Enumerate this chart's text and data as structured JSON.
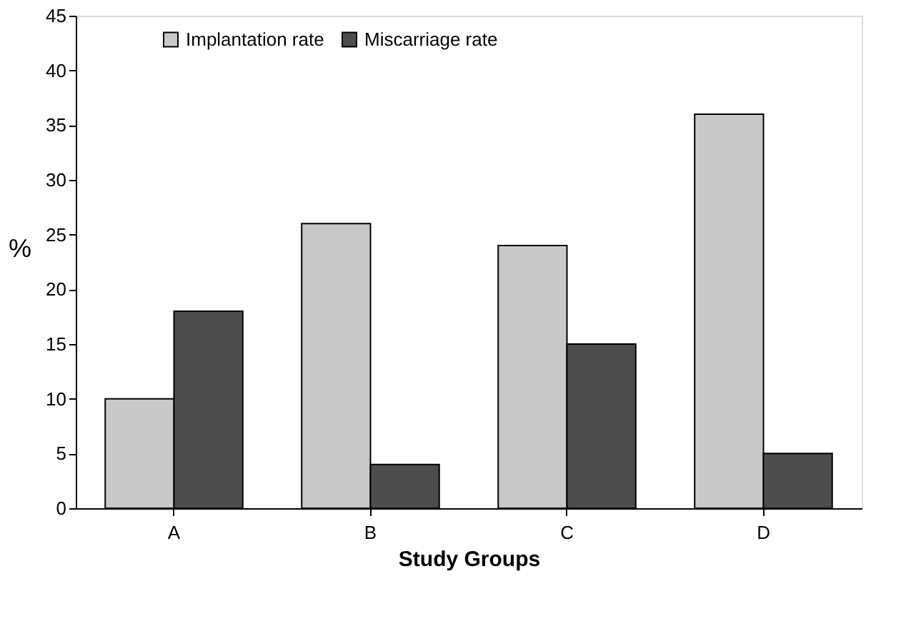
{
  "chart_data": {
    "type": "bar",
    "categories": [
      "A",
      "B",
      "C",
      "D"
    ],
    "xlabel": "Study Groups",
    "ylabel": "%",
    "series": [
      {
        "name": "Implantation rate",
        "color": "#c8c8c8",
        "values": [
          10,
          26,
          24,
          36
        ]
      },
      {
        "name": "Miscarriage rate",
        "color": "#4d4d4d",
        "values": [
          18,
          4,
          15,
          5
        ]
      }
    ],
    "ylim": [
      0,
      45
    ],
    "yticks": [
      0,
      5,
      10,
      15,
      20,
      25,
      30,
      35,
      40,
      45
    ],
    "grid": false,
    "legend": "top"
  }
}
